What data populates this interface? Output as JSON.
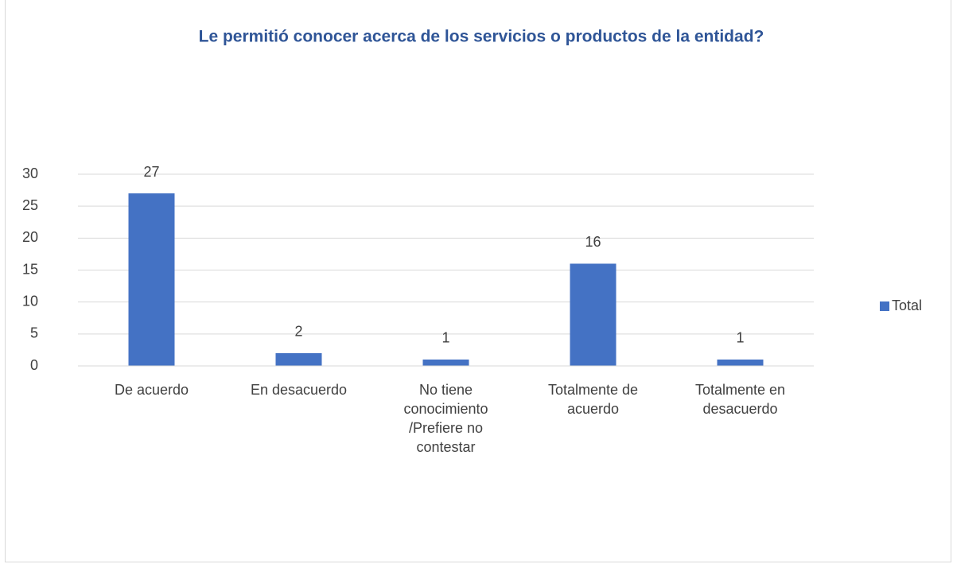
{
  "chart_data": {
    "type": "bar",
    "title": "Le permitió conocer acerca de los servicios o productos de la entidad?",
    "categories": [
      "De acuerdo",
      "En desacuerdo",
      "No tiene conocimiento /Prefiere no contestar",
      "Totalmente de acuerdo",
      "Totalmente en desacuerdo"
    ],
    "series": [
      {
        "name": "Total",
        "color": "#4472c4",
        "values": [
          27,
          2,
          1,
          16,
          1
        ]
      }
    ],
    "ylim": [
      0,
      30
    ],
    "yticks": [
      0,
      5,
      10,
      15,
      20,
      25,
      30
    ],
    "grid": true,
    "legend": "right"
  }
}
